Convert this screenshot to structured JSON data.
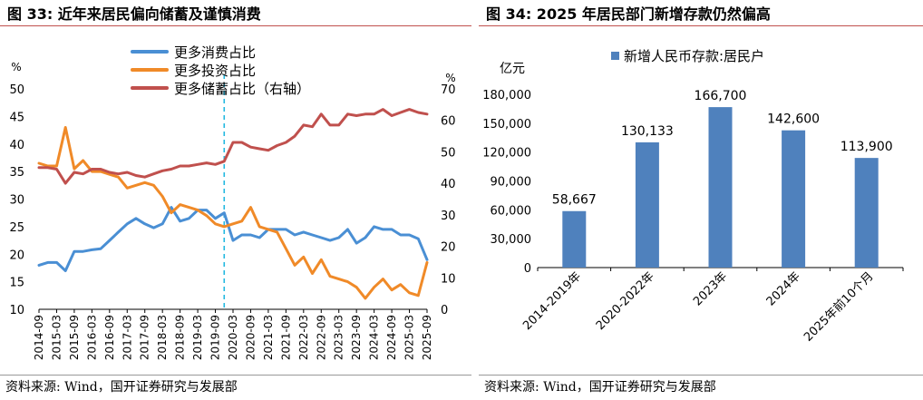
{
  "left": {
    "title": "图 33:  近年来居民偏向储蓄及谨慎消费",
    "source": "资料来源:  Wind，国开证券研究与发展部",
    "chart_data": {
      "type": "line",
      "y_left_unit": "%",
      "y_right_unit": "%",
      "ylim_left": [
        10,
        50
      ],
      "ylim_right": [
        0,
        70
      ],
      "y_left_ticks": [
        "10",
        "15",
        "20",
        "25",
        "30",
        "35",
        "40",
        "45",
        "50"
      ],
      "y_right_ticks": [
        "0",
        "10",
        "20",
        "30",
        "40",
        "50",
        "60",
        "70"
      ],
      "grid": false,
      "legend_position": "top",
      "marker_date": "2019-12",
      "x_ticks": [
        "2014-09",
        "2015-03",
        "2015-09",
        "2016-03",
        "2016-09",
        "2017-03",
        "2017-09",
        "2018-03",
        "2018-09",
        "2019-03",
        "2019-09",
        "2020-03",
        "2020-09",
        "2021-03",
        "2021-09",
        "2022-03",
        "2022-09",
        "2023-03",
        "2023-09",
        "2024-03",
        "2024-09",
        "2025-03",
        "2025-09"
      ],
      "dates": [
        "2014-09",
        "2014-12",
        "2015-03",
        "2015-06",
        "2015-09",
        "2015-12",
        "2016-03",
        "2016-06",
        "2016-09",
        "2016-12",
        "2017-03",
        "2017-06",
        "2017-09",
        "2017-12",
        "2018-03",
        "2018-06",
        "2018-09",
        "2018-12",
        "2019-03",
        "2019-06",
        "2019-09",
        "2019-12",
        "2020-03",
        "2020-06",
        "2020-09",
        "2020-12",
        "2021-03",
        "2021-06",
        "2021-09",
        "2021-12",
        "2022-03",
        "2022-06",
        "2022-09",
        "2022-12",
        "2023-03",
        "2023-06",
        "2023-09",
        "2023-12",
        "2024-03",
        "2024-06",
        "2024-09",
        "2024-12",
        "2025-03",
        "2025-06",
        "2025-09"
      ],
      "series": [
        {
          "name": "更多消费占比",
          "axis": "left",
          "color": "#4a8fd4",
          "values": [
            18.0,
            18.5,
            18.5,
            17.0,
            20.5,
            20.5,
            20.8,
            21.0,
            22.5,
            24.0,
            25.5,
            26.5,
            25.5,
            24.8,
            25.5,
            28.5,
            26.0,
            26.5,
            28.0,
            28.0,
            26.5,
            27.5,
            22.5,
            23.5,
            23.5,
            23.0,
            24.5,
            24.5,
            24.5,
            23.5,
            24.0,
            23.5,
            23.0,
            22.5,
            23.0,
            24.5,
            22.0,
            23.0,
            25.0,
            24.5,
            24.5,
            23.5,
            23.5,
            22.8,
            19.0
          ]
        },
        {
          "name": "更多投资占比",
          "axis": "left",
          "color": "#f08a28",
          "values": [
            36.5,
            36.0,
            36.0,
            43.0,
            35.5,
            37.0,
            35.0,
            35.0,
            34.5,
            34.0,
            32.0,
            32.5,
            33.0,
            32.5,
            30.5,
            27.5,
            29.0,
            28.5,
            28.0,
            27.0,
            25.5,
            25.0,
            25.5,
            26.0,
            28.5,
            25.0,
            24.5,
            24.0,
            21.0,
            18.0,
            19.5,
            16.5,
            19.0,
            16.0,
            15.5,
            15.0,
            14.0,
            12.0,
            14.0,
            15.5,
            13.5,
            14.5,
            13.0,
            12.5,
            18.5
          ]
        },
        {
          "name": "更多储蓄占比（右轴）",
          "axis": "right",
          "color": "#c0504d",
          "values": [
            45.0,
            45.0,
            44.5,
            40.0,
            43.5,
            43.0,
            44.5,
            44.5,
            43.5,
            43.0,
            43.5,
            42.5,
            42.0,
            43.0,
            44.0,
            44.5,
            45.5,
            45.5,
            46.0,
            46.5,
            46.0,
            47.0,
            53.0,
            53.0,
            51.5,
            51.0,
            50.5,
            52.0,
            53.0,
            55.0,
            58.5,
            58.0,
            62.0,
            58.5,
            58.5,
            62.0,
            61.5,
            62.0,
            62.0,
            63.5,
            61.5,
            62.5,
            63.5,
            62.5,
            62.0
          ]
        }
      ]
    }
  },
  "right": {
    "title": "图 34:  2025 年居民部门新增存款仍然偏高",
    "source": "资料来源:  Wind，国开证券研究与发展部",
    "chart_data": {
      "type": "bar",
      "y_unit": "亿元",
      "legend": "新增人民币存款:居民户",
      "legend_position": "top",
      "color": "#4f81bd",
      "ylim": [
        0,
        180000
      ],
      "y_ticks": [
        "0",
        "30,000",
        "60,000",
        "90,000",
        "120,000",
        "150,000",
        "180,000"
      ],
      "grid": false,
      "categories": [
        "2014-2019年",
        "2020-2022年",
        "2023年",
        "2024年",
        "2025年前10个月"
      ],
      "values": [
        58667,
        130133,
        166700,
        142600,
        113900
      ],
      "value_labels": [
        "58,667",
        "130,133",
        "166,700",
        "142,600",
        "113,900"
      ]
    }
  }
}
